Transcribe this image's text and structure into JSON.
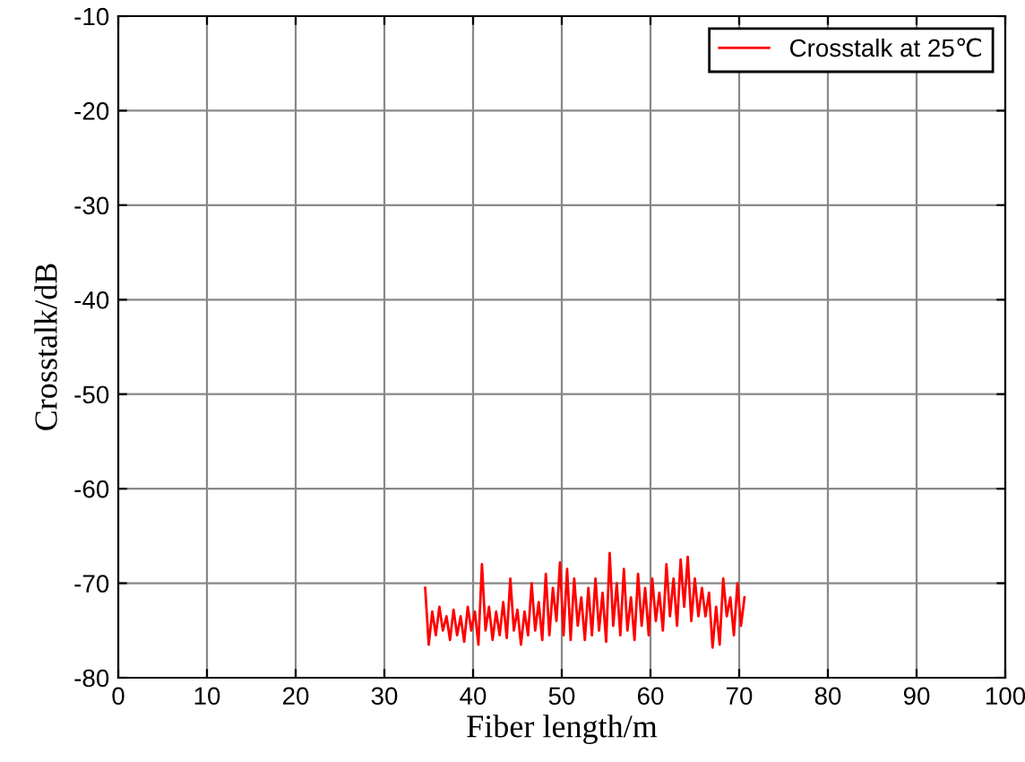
{
  "chart_data": {
    "type": "line",
    "xlabel": "Fiber length/m",
    "ylabel": "Crosstalk/dB",
    "xlim": [
      0,
      100
    ],
    "xticks": [
      0,
      10,
      20,
      30,
      40,
      50,
      60,
      70,
      80,
      90,
      100
    ],
    "ylim": [
      -80,
      -10
    ],
    "yticks": [
      -80,
      -70,
      -60,
      -50,
      -40,
      -30,
      -20,
      -10
    ],
    "grid": true,
    "legend": "top right",
    "series": [
      {
        "name": "Crosstalk at 25℃",
        "color": "#ff0000",
        "x": [
          34.6,
          35.0,
          35.4,
          35.8,
          36.2,
          36.6,
          37.0,
          37.4,
          37.8,
          38.2,
          38.6,
          39.0,
          39.4,
          39.8,
          40.2,
          40.6,
          41.0,
          41.4,
          41.8,
          42.2,
          42.6,
          43.0,
          43.4,
          43.8,
          44.2,
          44.6,
          45.0,
          45.4,
          45.8,
          46.2,
          46.6,
          47.0,
          47.4,
          47.8,
          48.2,
          48.6,
          49.0,
          49.4,
          49.8,
          50.2,
          50.6,
          51.0,
          51.4,
          51.8,
          52.2,
          52.6,
          53.0,
          53.4,
          53.8,
          54.2,
          54.6,
          55.0,
          55.4,
          55.8,
          56.2,
          56.6,
          57.0,
          57.4,
          57.8,
          58.2,
          58.6,
          59.0,
          59.4,
          59.8,
          60.2,
          60.6,
          61.0,
          61.4,
          61.8,
          62.2,
          62.6,
          63.0,
          63.4,
          63.8,
          64.2,
          64.6,
          65.0,
          65.4,
          65.8,
          66.2,
          66.6,
          67.0,
          67.4,
          67.8,
          68.2,
          68.6,
          69.0,
          69.4,
          69.8,
          70.2,
          70.6
        ],
        "values": [
          -70.5,
          -76.5,
          -73,
          -75.5,
          -72.5,
          -75,
          -73.5,
          -76,
          -72.8,
          -75.5,
          -73.5,
          -76.2,
          -72.5,
          -75,
          -73,
          -76.5,
          -68,
          -75,
          -72.5,
          -76,
          -73,
          -75.5,
          -72,
          -75.8,
          -69.5,
          -75,
          -72.8,
          -76.5,
          -73,
          -75.5,
          -70,
          -75,
          -72,
          -76,
          -69,
          -75.5,
          -70.5,
          -74,
          -67.8,
          -75.5,
          -68.5,
          -76,
          -69.5,
          -74.5,
          -71.5,
          -76,
          -70.5,
          -75.5,
          -69.5,
          -75,
          -71,
          -76.2,
          -66.8,
          -74.5,
          -70,
          -75.5,
          -68.5,
          -75,
          -71.5,
          -76,
          -69,
          -74.5,
          -70.5,
          -75.5,
          -69.5,
          -74,
          -71,
          -75,
          -68,
          -73.5,
          -69.5,
          -74.5,
          -67.5,
          -72.5,
          -67.2,
          -74,
          -69.5,
          -73.5,
          -70.5,
          -73.5,
          -71,
          -76.8,
          -72.5,
          -76.5,
          -69.5,
          -73.5,
          -71.5,
          -75.5,
          -70,
          -74.5,
          -71.5
        ]
      }
    ]
  }
}
